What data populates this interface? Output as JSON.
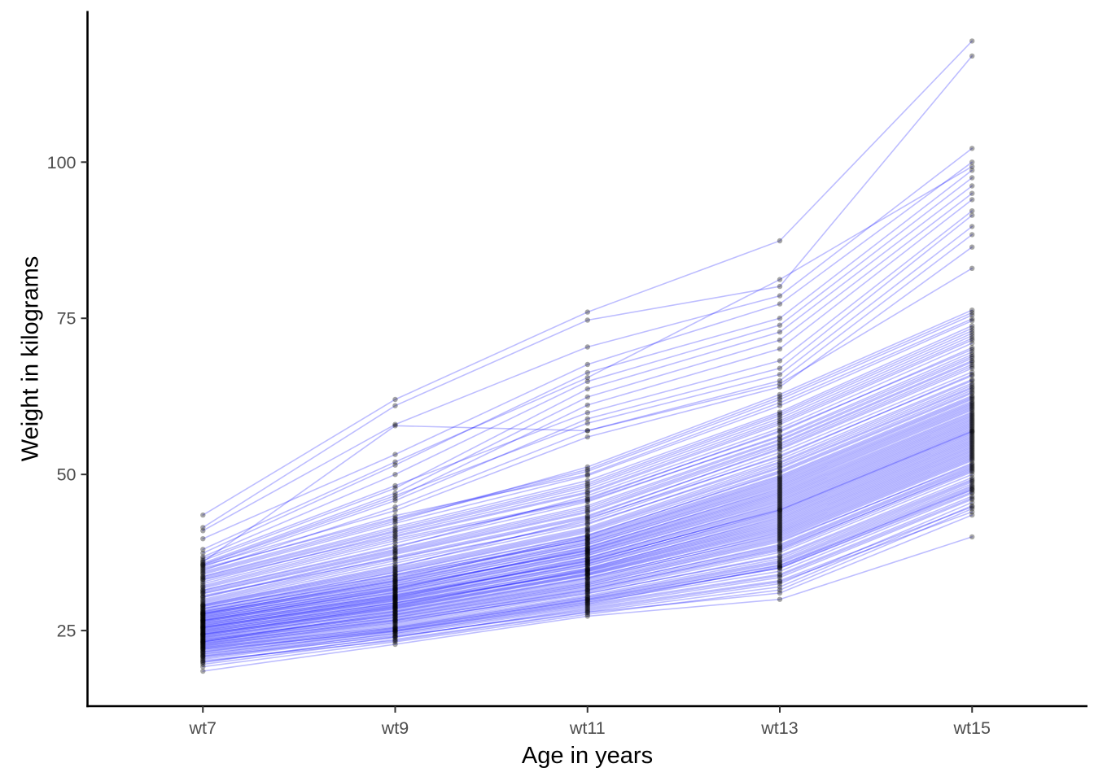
{
  "chart_data": {
    "type": "line",
    "subtype": "spaghetti-longitudinal-trajectories",
    "title": "",
    "xlabel": "Age in years",
    "ylabel": "Weight in kilograms",
    "categories": [
      "wt7",
      "wt9",
      "wt11",
      "wt13",
      "wt15"
    ],
    "yticks": [
      25,
      50,
      75,
      100
    ],
    "ylim": [
      12.9,
      124.2
    ],
    "grid": false,
    "legend": false,
    "line_color": "#0000FF",
    "line_alpha": 0.26,
    "point_color": "#000000",
    "point_alpha": 0.35,
    "axis_text_color": "#4D4D4D",
    "axis_line_color": "#000000",
    "series_estimated_from_pixels": true,
    "observed_ranges": {
      "wt7": [
        18.5,
        43.5
      ],
      "wt9": [
        22.8,
        62.0
      ],
      "wt11": [
        27.3,
        76.0
      ],
      "wt13": [
        30.0,
        87.4
      ],
      "wt15": [
        40.0,
        119.4
      ]
    },
    "observed_medians": {
      "wt7": 25.5,
      "wt9": 30.5,
      "wt11": 36.0,
      "wt13": 45.0,
      "wt15": 58.0
    },
    "series": [
      [
        18.5,
        22.8,
        27.3,
        30.0,
        40.0
      ],
      [
        19.2,
        23.2,
        27.6,
        31.5,
        44.5
      ],
      [
        19.6,
        23.6,
        28.0,
        32.0,
        45.0
      ],
      [
        19.9,
        24.0,
        28.4,
        32.8,
        44.0
      ],
      [
        20.2,
        23.4,
        27.9,
        31.0,
        43.5
      ],
      [
        20.4,
        24.3,
        28.8,
        33.5,
        46.0
      ],
      [
        20.6,
        24.6,
        29.2,
        34.0,
        46.5
      ],
      [
        20.8,
        24.1,
        28.2,
        32.5,
        45.5
      ],
      [
        21.0,
        24.8,
        29.5,
        34.5,
        47.0
      ],
      [
        20.0,
        23.9,
        28.6,
        33.0,
        44.8
      ],
      [
        21.2,
        25.0,
        29.8,
        35.0,
        47.5
      ],
      [
        20.9,
        24.5,
        29.0,
        33.8,
        46.2
      ],
      [
        21.3,
        24.9,
        29.3,
        35.2,
        47.8
      ],
      [
        21.5,
        25.2,
        30.0,
        35.5,
        48.0
      ],
      [
        21.7,
        25.5,
        30.3,
        36.0,
        48.5
      ],
      [
        21.9,
        25.0,
        29.6,
        35.0,
        47.2
      ],
      [
        22.0,
        25.8,
        30.6,
        36.5,
        49.0
      ],
      [
        22.1,
        25.4,
        30.1,
        35.8,
        48.2
      ],
      [
        22.2,
        26.0,
        30.9,
        37.0,
        49.5
      ],
      [
        22.3,
        25.6,
        30.4,
        36.2,
        48.8
      ],
      [
        22.4,
        26.2,
        31.2,
        37.5,
        50.0
      ],
      [
        22.5,
        26.5,
        31.0,
        36.8,
        49.2
      ],
      [
        21.6,
        25.3,
        29.9,
        35.4,
        47.6
      ],
      [
        22.6,
        26.3,
        31.4,
        37.8,
        50.4
      ],
      [
        22.7,
        26.6,
        31.6,
        38.0,
        50.8
      ],
      [
        22.8,
        26.8,
        31.8,
        38.4,
        51.0
      ],
      [
        22.9,
        27.0,
        32.0,
        38.8,
        51.4
      ],
      [
        23.0,
        26.7,
        31.5,
        38.2,
        50.6
      ],
      [
        23.1,
        27.2,
        32.3,
        39.2,
        51.8
      ],
      [
        23.2,
        27.5,
        32.6,
        39.6,
        52.2
      ],
      [
        23.3,
        27.1,
        32.1,
        38.6,
        51.2
      ],
      [
        23.4,
        27.7,
        32.9,
        40.0,
        52.6
      ],
      [
        23.5,
        27.4,
        32.4,
        39.4,
        51.6
      ],
      [
        23.2,
        27.9,
        33.1,
        40.4,
        53.0
      ],
      [
        23.6,
        27.6,
        32.7,
        39.8,
        52.4
      ],
      [
        23.7,
        28.0,
        33.3,
        40.2,
        52.8
      ],
      [
        23.8,
        28.2,
        33.5,
        40.6,
        53.2
      ],
      [
        23.9,
        28.4,
        33.8,
        41.0,
        53.6
      ],
      [
        24.0,
        28.1,
        33.4,
        40.8,
        53.4
      ],
      [
        24.1,
        28.6,
        34.0,
        41.4,
        54.0
      ],
      [
        24.2,
        28.8,
        34.2,
        41.8,
        54.4
      ],
      [
        24.3,
        28.5,
        33.9,
        41.2,
        53.8
      ],
      [
        24.4,
        29.0,
        34.5,
        42.2,
        54.8
      ],
      [
        24.5,
        28.7,
        34.1,
        41.6,
        54.2
      ],
      [
        24.6,
        29.2,
        34.7,
        42.6,
        55.2
      ],
      [
        24.7,
        29.4,
        34.4,
        42.0,
        54.6
      ],
      [
        24.4,
        28.9,
        34.8,
        42.8,
        55.4
      ],
      [
        24.8,
        29.1,
        34.6,
        42.4,
        55.0
      ],
      [
        24.9,
        29.5,
        35.0,
        43.0,
        55.6
      ],
      [
        25.0,
        29.7,
        35.3,
        43.4,
        56.0
      ],
      [
        25.1,
        29.4,
        34.9,
        43.2,
        55.8
      ],
      [
        25.2,
        29.9,
        35.6,
        43.8,
        56.4
      ],
      [
        25.3,
        30.1,
        35.8,
        44.0,
        56.6
      ],
      [
        25.4,
        29.8,
        35.4,
        43.6,
        56.2
      ],
      [
        25.5,
        30.3,
        36.1,
        44.4,
        57.0
      ],
      [
        25.6,
        30.0,
        35.7,
        44.2,
        56.8
      ],
      [
        25.7,
        30.5,
        36.3,
        44.8,
        57.4
      ],
      [
        25.8,
        30.7,
        36.0,
        44.6,
        57.2
      ],
      [
        25.5,
        30.2,
        36.5,
        45.0,
        57.6
      ],
      [
        25.9,
        30.4,
        36.2,
        44.3,
        56.9
      ],
      [
        26.0,
        30.8,
        36.7,
        45.2,
        57.8
      ],
      [
        26.1,
        31.0,
        37.0,
        45.6,
        58.2
      ],
      [
        26.2,
        30.6,
        36.6,
        45.4,
        58.0
      ],
      [
        26.3,
        31.2,
        37.3,
        46.0,
        58.6
      ],
      [
        26.4,
        31.5,
        37.5,
        46.4,
        59.0
      ],
      [
        26.5,
        31.1,
        37.1,
        45.8,
        58.4
      ],
      [
        26.6,
        31.7,
        37.8,
        46.8,
        59.4
      ],
      [
        26.7,
        31.4,
        37.4,
        46.2,
        58.8
      ],
      [
        26.8,
        31.9,
        38.0,
        47.2,
        59.8
      ],
      [
        26.9,
        32.1,
        37.7,
        46.6,
        59.2
      ],
      [
        26.6,
        31.6,
        38.2,
        47.4,
        60.0
      ],
      [
        27.0,
        31.8,
        37.9,
        47.0,
        59.6
      ],
      [
        27.1,
        32.3,
        38.4,
        47.6,
        60.3
      ],
      [
        27.2,
        32.5,
        38.7,
        48.0,
        60.7
      ],
      [
        27.3,
        32.2,
        38.3,
        47.8,
        60.5
      ],
      [
        27.4,
        32.8,
        39.0,
        48.4,
        61.1
      ],
      [
        27.5,
        33.0,
        39.3,
        48.8,
        61.5
      ],
      [
        27.6,
        32.6,
        38.8,
        48.2,
        60.9
      ],
      [
        27.7,
        33.3,
        39.6,
        49.2,
        62.0
      ],
      [
        27.8,
        32.9,
        39.1,
        48.6,
        61.3
      ],
      [
        27.9,
        33.6,
        39.9,
        49.6,
        62.4
      ],
      [
        28.0,
        33.8,
        39.5,
        49.0,
        61.7
      ],
      [
        27.7,
        33.1,
        40.1,
        49.8,
        62.6
      ],
      [
        28.1,
        33.4,
        39.7,
        49.4,
        62.2
      ],
      [
        28.2,
        34.0,
        40.3,
        50.2,
        63.0
      ],
      [
        28.4,
        34.3,
        40.7,
        50.6,
        63.5
      ],
      [
        28.6,
        33.9,
        40.2,
        50.4,
        63.2
      ],
      [
        28.8,
        34.6,
        41.1,
        51.2,
        64.0
      ],
      [
        29.0,
        35.0,
        41.5,
        51.8,
        64.6
      ],
      [
        28.5,
        34.4,
        40.9,
        51.0,
        63.8
      ],
      [
        29.2,
        35.4,
        42.0,
        52.4,
        65.2
      ],
      [
        28.9,
        34.8,
        41.3,
        51.5,
        64.3
      ],
      [
        29.4,
        35.8,
        42.5,
        53.0,
        65.8
      ],
      [
        29.6,
        36.2,
        42.2,
        52.0,
        65.0
      ],
      [
        29.1,
        35.2,
        42.8,
        53.5,
        66.4
      ],
      [
        29.8,
        36.5,
        43.0,
        52.8,
        66.0
      ],
      [
        30.0,
        36.8,
        43.4,
        54.0,
        67.0
      ],
      [
        30.3,
        37.2,
        43.9,
        54.5,
        67.6
      ],
      [
        30.6,
        36.6,
        43.2,
        54.2,
        67.3
      ],
      [
        30.9,
        37.6,
        44.4,
        55.0,
        68.2
      ],
      [
        31.2,
        38.0,
        45.0,
        55.6,
        68.9
      ],
      [
        30.4,
        37.4,
        44.1,
        54.8,
        68.0
      ],
      [
        31.5,
        38.5,
        45.6,
        56.2,
        69.6
      ],
      [
        31.0,
        37.8,
        44.7,
        55.4,
        68.6
      ],
      [
        31.8,
        39.0,
        46.2,
        56.8,
        70.3
      ],
      [
        32.0,
        39.4,
        45.8,
        56.0,
        69.2
      ],
      [
        31.4,
        38.3,
        46.6,
        57.4,
        71.0
      ],
      [
        32.2,
        39.7,
        46.0,
        57.0,
        70.0
      ],
      [
        32.5,
        40.0,
        47.0,
        58.0,
        71.5
      ],
      [
        32.8,
        40.5,
        47.6,
        58.6,
        72.2
      ],
      [
        33.1,
        40.2,
        47.2,
        58.3,
        71.8
      ],
      [
        33.4,
        41.0,
        48.3,
        59.4,
        73.0
      ],
      [
        33.7,
        41.6,
        49.0,
        60.0,
        73.8
      ],
      [
        33.2,
        40.8,
        48.0,
        59.0,
        72.6
      ],
      [
        34.0,
        42.2,
        49.8,
        61.0,
        74.6
      ],
      [
        33.6,
        41.3,
        48.6,
        59.7,
        73.4
      ],
      [
        34.4,
        42.8,
        50.5,
        62.0,
        75.5
      ],
      [
        34.8,
        43.4,
        50.0,
        61.5,
        74.9
      ],
      [
        34.2,
        42.5,
        51.2,
        62.8,
        76.3
      ],
      [
        35.0,
        43.0,
        50.8,
        62.4,
        75.9
      ],
      [
        43.5,
        62.0,
        76.0,
        87.4,
        119.4
      ],
      [
        41.5,
        61.0,
        74.7,
        80.1,
        117.0
      ],
      [
        41.0,
        58.0,
        70.4,
        78.6,
        102.2
      ],
      [
        39.7,
        53.2,
        67.6,
        77.3,
        100.0
      ],
      [
        37.4,
        51.5,
        66.3,
        75.0,
        98.7
      ],
      [
        36.8,
        50.0,
        64.9,
        73.9,
        97.5
      ],
      [
        36.2,
        47.8,
        63.7,
        72.8,
        96.2
      ],
      [
        35.8,
        47.0,
        62.4,
        71.5,
        95.0
      ],
      [
        35.5,
        46.2,
        61.1,
        70.1,
        94.0
      ],
      [
        36.5,
        48.2,
        59.9,
        68.2,
        92.2
      ],
      [
        35.2,
        45.8,
        58.9,
        67.0,
        91.5
      ],
      [
        35.6,
        46.6,
        58.2,
        66.0,
        89.7
      ],
      [
        34.6,
        44.8,
        57.0,
        65.0,
        88.4
      ],
      [
        35.4,
        44.2,
        56.0,
        64.0,
        86.4
      ],
      [
        38.0,
        52.0,
        65.5,
        81.2,
        99.3
      ],
      [
        36.0,
        57.8,
        57.0,
        64.5,
        83.0
      ]
    ]
  }
}
